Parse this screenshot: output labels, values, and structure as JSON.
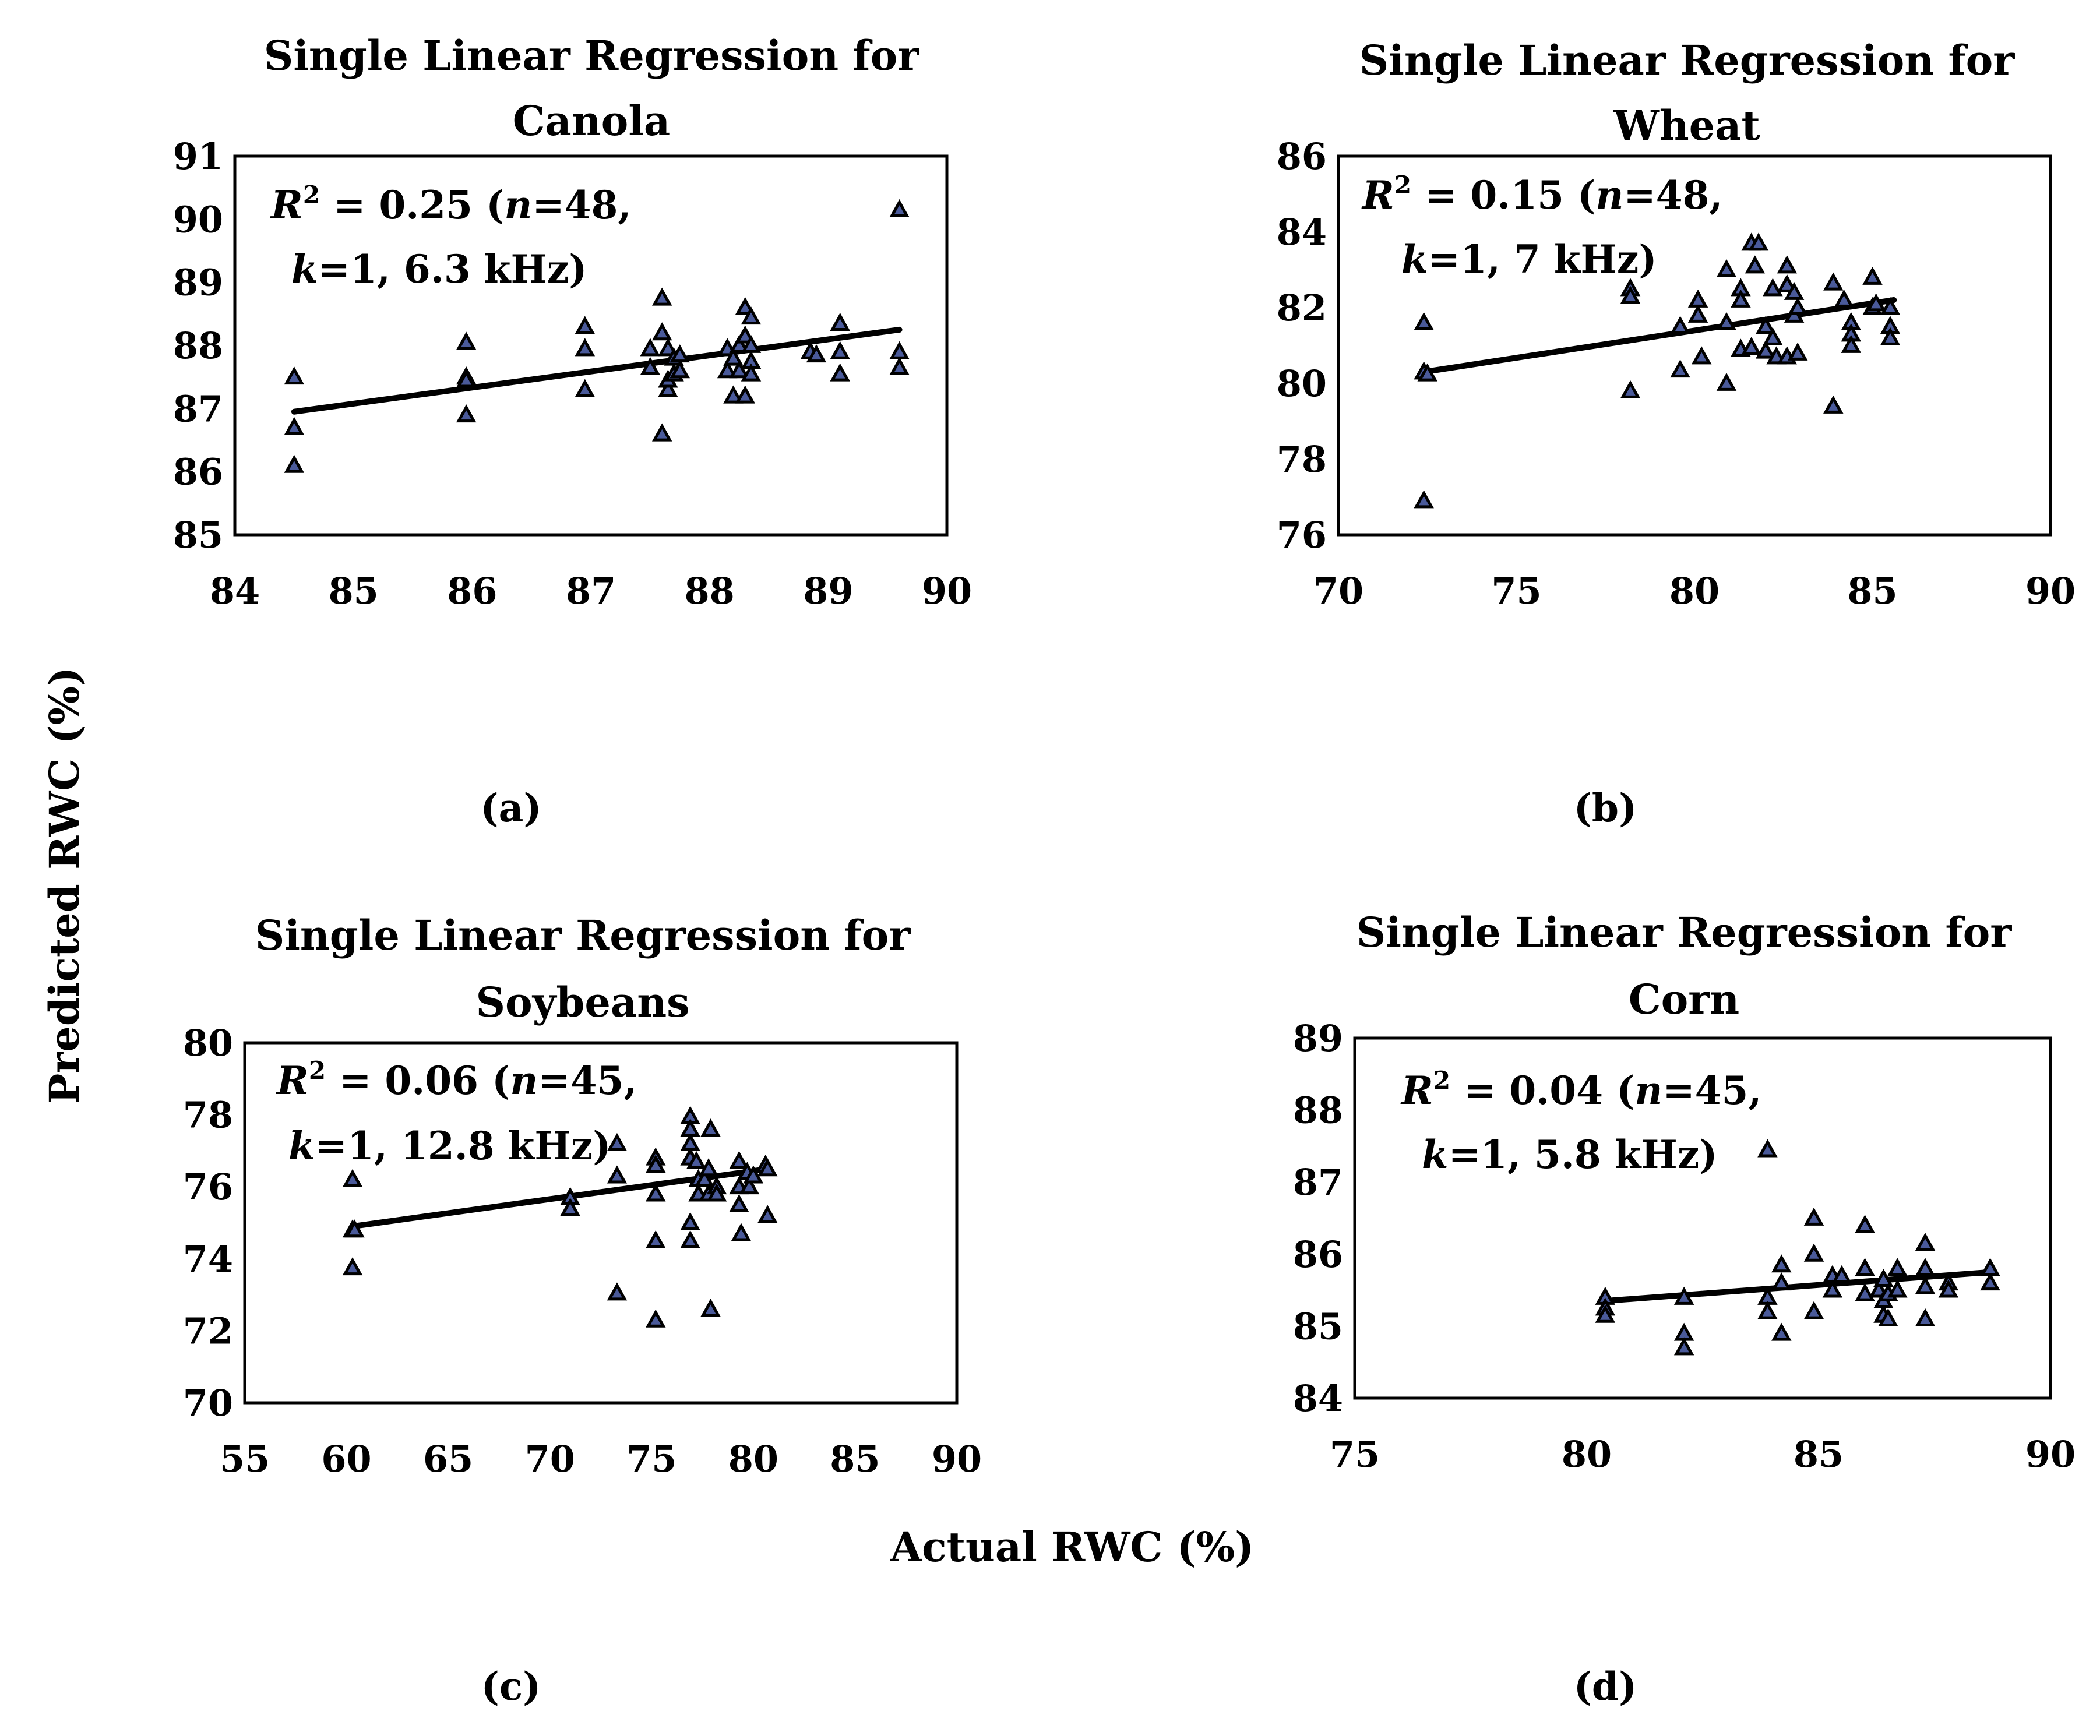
{
  "figure": {
    "xlabel": "Actual RWC (%)",
    "ylabel": "Predicted RWC (%)"
  },
  "chart_data": [
    {
      "type": "scatter",
      "panel": "(a)",
      "title_line1": "Single Linear Regression for",
      "title_line2": "Canola",
      "stat_line1_prefix": "R",
      "stat_line1_sup": "2",
      "stat_line1_mid": " = 0.25 (",
      "stat_line1_n": "n",
      "stat_line1_end": "=48,",
      "stat_line2_k": "k",
      "stat_line2_end": "=1, 6.3 kHz)",
      "xlim": [
        84,
        90
      ],
      "ylim": [
        85,
        91
      ],
      "xticks": [
        84,
        85,
        86,
        87,
        88,
        89,
        90
      ],
      "yticks": [
        85,
        86,
        87,
        88,
        89,
        90,
        91
      ],
      "trend": [
        [
          84.5,
          86.95
        ],
        [
          89.6,
          88.25
        ]
      ],
      "points": [
        [
          84.5,
          87.5
        ],
        [
          84.5,
          86.7
        ],
        [
          84.5,
          86.1
        ],
        [
          85.95,
          88.05
        ],
        [
          85.95,
          87.5
        ],
        [
          85.95,
          87.45
        ],
        [
          85.95,
          86.9
        ],
        [
          86.95,
          88.3
        ],
        [
          86.95,
          87.95
        ],
        [
          86.95,
          87.3
        ],
        [
          87.5,
          87.95
        ],
        [
          87.5,
          87.65
        ],
        [
          87.6,
          88.75
        ],
        [
          87.6,
          88.2
        ],
        [
          87.6,
          86.6
        ],
        [
          87.65,
          87.95
        ],
        [
          87.65,
          87.3
        ],
        [
          87.65,
          87.45
        ],
        [
          87.7,
          87.8
        ],
        [
          87.7,
          87.55
        ],
        [
          87.75,
          87.85
        ],
        [
          87.75,
          87.6
        ],
        [
          88.15,
          87.95
        ],
        [
          88.15,
          87.6
        ],
        [
          88.2,
          87.8
        ],
        [
          88.2,
          87.2
        ],
        [
          88.25,
          88.0
        ],
        [
          88.25,
          87.6
        ],
        [
          88.3,
          88.6
        ],
        [
          88.3,
          88.15
        ],
        [
          88.3,
          87.2
        ],
        [
          88.35,
          88.45
        ],
        [
          88.35,
          88.0
        ],
        [
          88.35,
          87.75
        ],
        [
          88.35,
          87.55
        ],
        [
          88.85,
          87.9
        ],
        [
          88.9,
          87.85
        ],
        [
          89.1,
          88.35
        ],
        [
          89.1,
          87.9
        ],
        [
          89.1,
          87.55
        ],
        [
          89.6,
          90.15
        ],
        [
          89.6,
          87.9
        ],
        [
          89.6,
          87.65
        ]
      ]
    },
    {
      "type": "scatter",
      "panel": "(b)",
      "title_line1": "Single Linear Regression for",
      "title_line2": "Wheat",
      "stat_line1_prefix": "R",
      "stat_line1_sup": "2",
      "stat_line1_mid": " = 0.15 (",
      "stat_line1_n": "n",
      "stat_line1_end": "=48,",
      "stat_line2_k": "k",
      "stat_line2_end": "=1, 7 kHz)",
      "xlim": [
        70,
        90
      ],
      "ylim": [
        76,
        86
      ],
      "xticks": [
        70,
        75,
        80,
        85,
        90
      ],
      "yticks": [
        76,
        78,
        80,
        82,
        84,
        86
      ],
      "trend": [
        [
          72.4,
          80.3
        ],
        [
          85.6,
          82.2
        ]
      ],
      "points": [
        [
          72.4,
          81.6
        ],
        [
          72.4,
          80.3
        ],
        [
          72.5,
          80.25
        ],
        [
          72.4,
          76.9
        ],
        [
          78.2,
          82.5
        ],
        [
          78.2,
          82.3
        ],
        [
          78.2,
          79.8
        ],
        [
          79.6,
          81.5
        ],
        [
          79.6,
          80.35
        ],
        [
          80.1,
          82.2
        ],
        [
          80.1,
          81.8
        ],
        [
          80.2,
          80.7
        ],
        [
          80.9,
          83.0
        ],
        [
          80.9,
          81.6
        ],
        [
          80.9,
          80.0
        ],
        [
          81.3,
          82.5
        ],
        [
          81.3,
          82.2
        ],
        [
          81.3,
          80.9
        ],
        [
          81.6,
          83.7
        ],
        [
          81.8,
          83.7
        ],
        [
          81.7,
          83.1
        ],
        [
          81.6,
          80.95
        ],
        [
          82.0,
          81.5
        ],
        [
          82.0,
          80.85
        ],
        [
          82.2,
          82.5
        ],
        [
          82.2,
          81.2
        ],
        [
          82.3,
          80.7
        ],
        [
          82.6,
          83.1
        ],
        [
          82.6,
          82.6
        ],
        [
          82.6,
          80.7
        ],
        [
          82.8,
          82.4
        ],
        [
          82.8,
          81.8
        ],
        [
          82.9,
          82.0
        ],
        [
          82.9,
          80.8
        ],
        [
          83.9,
          82.65
        ],
        [
          83.9,
          79.4
        ],
        [
          84.2,
          82.2
        ],
        [
          84.4,
          81.6
        ],
        [
          84.4,
          81.3
        ],
        [
          84.4,
          81.0
        ],
        [
          85.0,
          82.8
        ],
        [
          85.0,
          82.0
        ],
        [
          85.1,
          82.1
        ],
        [
          85.5,
          82.0
        ],
        [
          85.5,
          81.5
        ],
        [
          85.5,
          81.2
        ]
      ]
    },
    {
      "type": "scatter",
      "panel": "(c)",
      "title_line1": "Single Linear Regression for",
      "title_line2": "Soybeans",
      "stat_line1_prefix": "R",
      "stat_line1_sup": "2",
      "stat_line1_mid": " = 0.06 (",
      "stat_line1_n": "n",
      "stat_line1_end": "=45,",
      "stat_line2_k": "k",
      "stat_line2_end": "=1, 12.8 kHz)",
      "xlim": [
        55,
        90
      ],
      "ylim": [
        70,
        80
      ],
      "xticks": [
        55,
        60,
        65,
        70,
        75,
        80,
        85,
        90
      ],
      "yticks": [
        70,
        72,
        74,
        76,
        78,
        80
      ],
      "trend": [
        [
          60.3,
          74.9
        ],
        [
          80.8,
          76.5
        ]
      ],
      "points": [
        [
          60.3,
          76.2
        ],
        [
          60.3,
          74.8
        ],
        [
          60.4,
          74.8
        ],
        [
          60.3,
          73.75
        ],
        [
          71.0,
          75.7
        ],
        [
          71.0,
          75.4
        ],
        [
          73.3,
          77.2
        ],
        [
          73.3,
          76.3
        ],
        [
          73.3,
          73.05
        ],
        [
          75.2,
          76.8
        ],
        [
          75.2,
          76.6
        ],
        [
          75.2,
          75.8
        ],
        [
          75.2,
          74.5
        ],
        [
          75.2,
          72.3
        ],
        [
          76.9,
          77.95
        ],
        [
          76.9,
          77.6
        ],
        [
          76.9,
          77.2
        ],
        [
          76.9,
          76.8
        ],
        [
          76.9,
          75.0
        ],
        [
          76.9,
          74.5
        ],
        [
          77.2,
          76.7
        ],
        [
          77.3,
          76.2
        ],
        [
          77.3,
          75.8
        ],
        [
          77.6,
          76.2
        ],
        [
          77.8,
          76.5
        ],
        [
          77.8,
          75.8
        ],
        [
          77.9,
          77.6
        ],
        [
          77.9,
          72.6
        ],
        [
          78.2,
          76.0
        ],
        [
          78.2,
          75.8
        ],
        [
          79.3,
          76.7
        ],
        [
          79.3,
          76.0
        ],
        [
          79.3,
          75.5
        ],
        [
          79.4,
          74.7
        ],
        [
          79.7,
          76.4
        ],
        [
          79.8,
          76.0
        ],
        [
          80.0,
          76.3
        ],
        [
          80.6,
          76.6
        ],
        [
          80.7,
          75.2
        ],
        [
          80.7,
          76.5
        ]
      ]
    },
    {
      "type": "scatter",
      "panel": "(d)",
      "title_line1": "Single Linear Regression for",
      "title_line2": "Corn",
      "stat_line1_prefix": "R",
      "stat_line1_sup": "2",
      "stat_line1_mid": " = 0.04 (",
      "stat_line1_n": "n",
      "stat_line1_end": "=45,",
      "stat_line2_k": "k",
      "stat_line2_end": "=1, 5.8 kHz)",
      "xlim": [
        75,
        90
      ],
      "ylim": [
        84,
        89
      ],
      "xticks": [
        75,
        80,
        85,
        90
      ],
      "yticks": [
        84,
        85,
        86,
        87,
        88,
        89
      ],
      "trend": [
        [
          80.4,
          85.35
        ],
        [
          88.7,
          85.75
        ]
      ],
      "points": [
        [
          80.4,
          85.4
        ],
        [
          80.4,
          85.25
        ],
        [
          80.4,
          85.15
        ],
        [
          82.1,
          85.4
        ],
        [
          82.1,
          84.9
        ],
        [
          82.1,
          84.7
        ],
        [
          83.9,
          87.45
        ],
        [
          83.9,
          85.4
        ],
        [
          83.9,
          85.2
        ],
        [
          84.2,
          85.85
        ],
        [
          84.2,
          85.6
        ],
        [
          84.2,
          84.9
        ],
        [
          84.9,
          86.5
        ],
        [
          84.9,
          86.0
        ],
        [
          84.9,
          85.2
        ],
        [
          85.3,
          85.7
        ],
        [
          85.3,
          85.5
        ],
        [
          85.5,
          85.7
        ],
        [
          86.0,
          86.4
        ],
        [
          86.0,
          85.8
        ],
        [
          86.0,
          85.45
        ],
        [
          86.3,
          85.5
        ],
        [
          86.4,
          85.65
        ],
        [
          86.4,
          85.35
        ],
        [
          86.4,
          85.15
        ],
        [
          86.5,
          85.45
        ],
        [
          86.5,
          85.1
        ],
        [
          86.7,
          85.8
        ],
        [
          86.7,
          85.5
        ],
        [
          87.3,
          86.15
        ],
        [
          87.3,
          85.8
        ],
        [
          87.3,
          85.55
        ],
        [
          87.3,
          85.1
        ],
        [
          87.8,
          85.6
        ],
        [
          87.8,
          85.5
        ],
        [
          88.7,
          85.8
        ],
        [
          88.7,
          85.6
        ]
      ]
    }
  ]
}
